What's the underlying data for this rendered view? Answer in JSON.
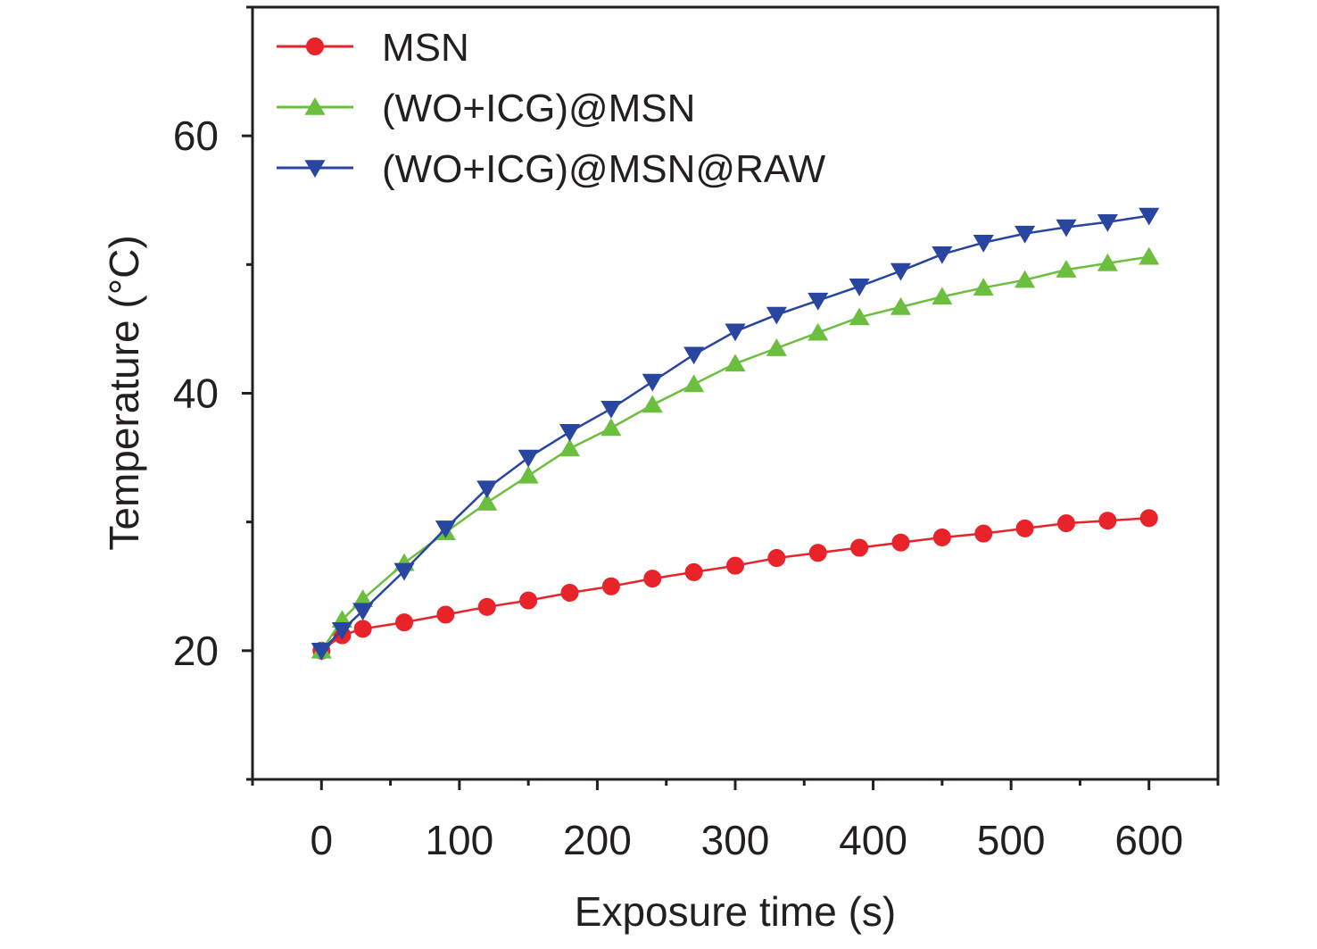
{
  "chart_data": {
    "type": "line",
    "xlabel": "Exposure time (s)",
    "ylabel": "Temperature (°C)",
    "xlim": [
      -50,
      650
    ],
    "ylim": [
      10,
      70
    ],
    "xticks": [
      0,
      100,
      200,
      300,
      400,
      500,
      600
    ],
    "yticks": [
      20,
      40,
      60
    ],
    "grid": false,
    "legend_position": "top-left",
    "x": [
      0,
      15,
      30,
      60,
      90,
      120,
      150,
      180,
      210,
      240,
      270,
      300,
      330,
      360,
      390,
      420,
      450,
      480,
      510,
      540,
      570,
      600
    ],
    "series": [
      {
        "name": "MSN",
        "color": "#e8232a",
        "marker": "circle",
        "values": [
          20.0,
          21.2,
          21.7,
          22.2,
          22.8,
          23.4,
          23.9,
          24.5,
          25.0,
          25.6,
          26.1,
          26.6,
          27.2,
          27.6,
          28.0,
          28.4,
          28.8,
          29.1,
          29.5,
          29.9,
          30.1,
          30.3
        ]
      },
      {
        "name": "(WO+ICG)@MSN",
        "color": "#6cbf3e",
        "marker": "triangle-up",
        "values": [
          20.0,
          22.4,
          24.0,
          26.8,
          29.2,
          31.5,
          33.6,
          35.7,
          37.3,
          39.1,
          40.7,
          42.3,
          43.5,
          44.7,
          45.9,
          46.7,
          47.5,
          48.2,
          48.8,
          49.6,
          50.1,
          50.6
        ]
      },
      {
        "name": "(WO+ICG)@MSN@RAW",
        "color": "#2845a0",
        "marker": "triangle-down",
        "values": [
          20.0,
          21.6,
          23.1,
          26.2,
          29.5,
          32.6,
          35.0,
          37.0,
          38.8,
          40.9,
          43.0,
          44.8,
          46.1,
          47.2,
          48.3,
          49.5,
          50.8,
          51.7,
          52.4,
          52.9,
          53.3,
          53.8
        ]
      }
    ]
  }
}
